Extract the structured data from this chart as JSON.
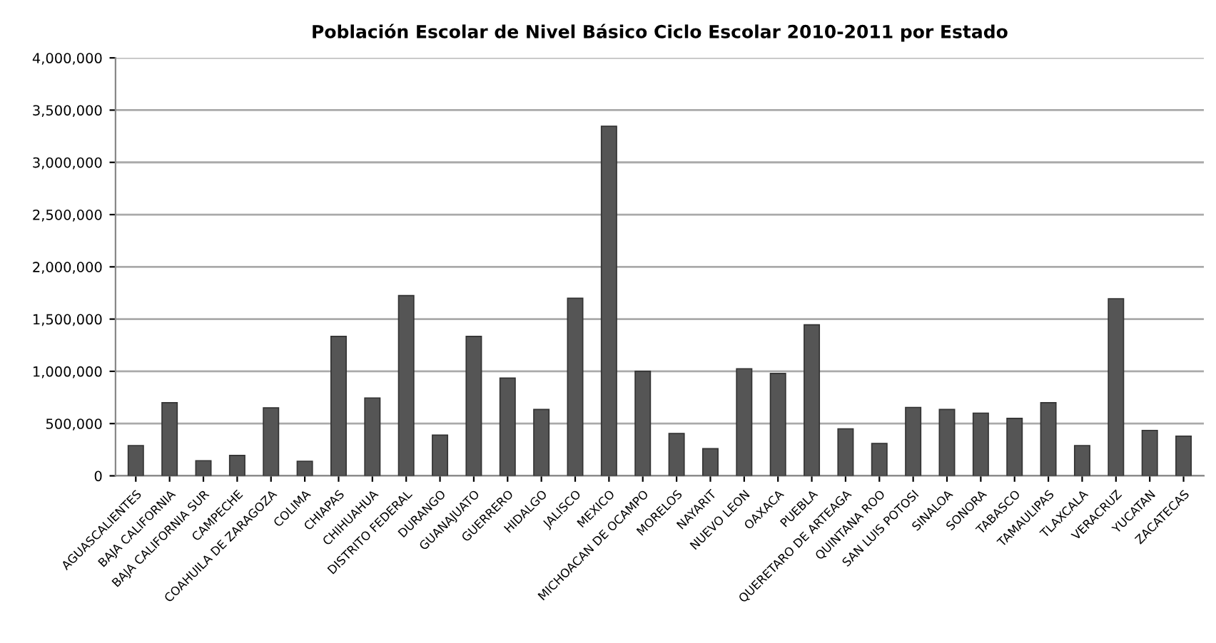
{
  "chart_data": {
    "type": "bar",
    "title": "Población Escolar de Nivel Básico Ciclo Escolar 2010-2011 por Estado",
    "categories": [
      "AGUASCALIENTES",
      "BAJA CALIFORNIA",
      "BAJA CALIFORNIA SUR",
      "CAMPECHE",
      "COAHUILA DE ZARAGOZA",
      "COLIMA",
      "CHIAPAS",
      "CHIHUAHUA",
      "DISTRITO FEDERAL",
      "DURANGO",
      "GUANAJUATO",
      "GUERRERO",
      "HIDALGO",
      "JALISCO",
      "MEXICO",
      "MICHOACAN DE OCAMPO",
      "MORELOS",
      "NAYARIT",
      "NUEVO LEON",
      "OAXACA",
      "PUEBLA",
      "QUERETARO DE ARTEAGA",
      "QUINTANA ROO",
      "SAN LUIS POTOSI",
      "SINALOA",
      "SONORA",
      "TABASCO",
      "TAMAULIPAS",
      "TLAXCALA",
      "VERACRUZ",
      "YUCATAN",
      "ZACATECAS"
    ],
    "values": [
      290000,
      700000,
      145000,
      195000,
      650000,
      140000,
      1335000,
      745000,
      1725000,
      390000,
      1335000,
      935000,
      635000,
      1700000,
      3345000,
      1000000,
      405000,
      260000,
      1025000,
      980000,
      1445000,
      450000,
      310000,
      655000,
      635000,
      600000,
      550000,
      700000,
      290000,
      1695000,
      435000,
      380000
    ],
    "color": "#555555",
    "ylim": [
      0,
      4000000
    ],
    "yticks": [
      {
        "value": 0,
        "label": "0"
      },
      {
        "value": 500000,
        "label": "500,000"
      },
      {
        "value": 1000000,
        "label": "1,000,000"
      },
      {
        "value": 1500000,
        "label": "1,500,000"
      },
      {
        "value": 2000000,
        "label": "2,000,000"
      },
      {
        "value": 2500000,
        "label": "2,500,000"
      },
      {
        "value": 3000000,
        "label": "3,000,000"
      },
      {
        "value": 3500000,
        "label": "3,500,000"
      },
      {
        "value": 4000000,
        "label": "4,000,000"
      }
    ],
    "grid": "y"
  }
}
